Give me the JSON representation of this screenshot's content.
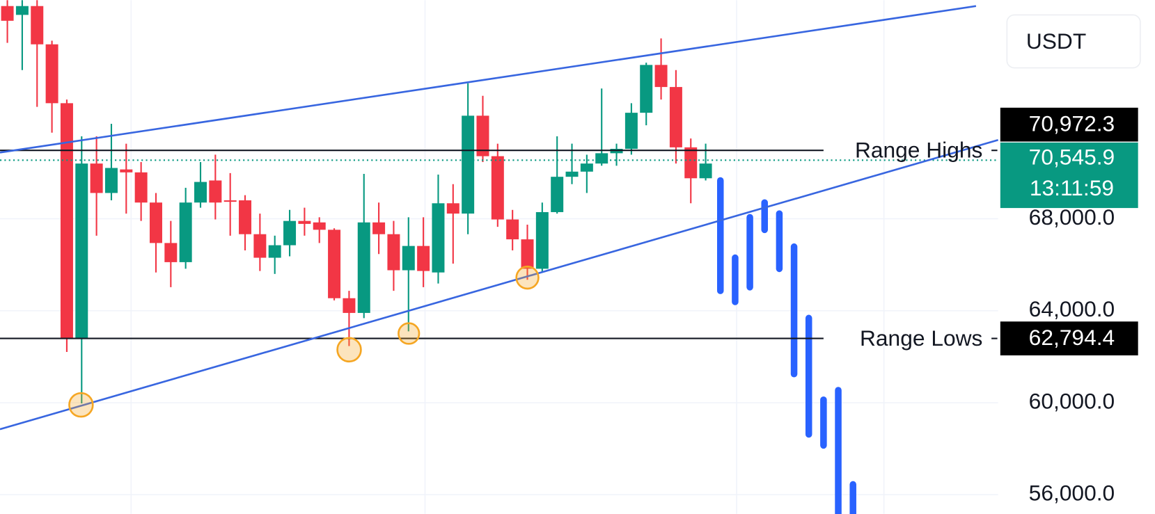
{
  "chart_data": {
    "type": "candlestick",
    "currency": "USDT",
    "up_color": "#089981",
    "down_color": "#f23645",
    "ylim": [
      55168,
      77504
    ],
    "yticks": [
      {
        "value": 56000,
        "label": "56,000.0"
      },
      {
        "value": 60000,
        "label": "60,000.0"
      },
      {
        "value": 64000,
        "label": "64,000.0"
      },
      {
        "value": 68000,
        "label": "68,000.0"
      }
    ],
    "grid": true,
    "candles": {
      "open": [
        77248,
        76864,
        77248,
        75584,
        73024,
        62784,
        70400,
        69120,
        70144,
        70016,
        68704,
        66944,
        66112,
        68704,
        69664,
        68800,
        68800,
        67328,
        66304,
        66848,
        67904,
        67840,
        67520,
        64544,
        63904,
        67840,
        67328,
        65760,
        66816,
        65664,
        68672,
        68224,
        72480,
        70720,
        67968,
        67104,
        65824,
        68288,
        69824,
        70048,
        70400,
        70848,
        71040,
        72608,
        74688,
        73728,
        71104,
        69760
      ],
      "high": [
        77504,
        77504,
        77504,
        75744,
        73184,
        71584,
        71584,
        72128,
        71264,
        70464,
        69120,
        67904,
        69344,
        70464,
        70784,
        69984,
        69024,
        68224,
        67264,
        68384,
        68480,
        68064,
        67584,
        64864,
        69952,
        68704,
        67904,
        68064,
        68064,
        69920,
        69504,
        73888,
        73344,
        71264,
        68384,
        67744,
        68704,
        71584,
        71264,
        70784,
        73664,
        71264,
        73024,
        74784,
        75840,
        74464,
        71488,
        71264
      ],
      "low": [
        75648,
        74464,
        72864,
        71744,
        62208,
        59968,
        67264,
        68800,
        68224,
        67904,
        65664,
        65024,
        65824,
        68480,
        67968,
        67264,
        66624,
        65728,
        65600,
        66368,
        67264,
        66944,
        64448,
        62464,
        63680,
        66464,
        64864,
        63104,
        65024,
        65184,
        66048,
        67328,
        70464,
        67648,
        66624,
        65344,
        65664,
        68224,
        69504,
        69120,
        70304,
        70304,
        70784,
        72064,
        73184,
        70400,
        68672,
        69664
      ],
      "close": [
        76608,
        77248,
        75584,
        73024,
        62784,
        70400,
        69120,
        70208,
        70016,
        68704,
        66944,
        66112,
        68704,
        69600,
        68704,
        68736,
        67328,
        66304,
        66848,
        67904,
        67776,
        67520,
        64544,
        63904,
        67840,
        67328,
        65760,
        66816,
        65728,
        68672,
        68224,
        72480,
        70720,
        67968,
        67104,
        65824,
        68288,
        69824,
        70048,
        70400,
        70848,
        71040,
        72608,
        74688,
        73728,
        71104,
        69760,
        70400
      ]
    },
    "projection": {
      "color": "#2962ff",
      "high": [
        69664,
        66304,
        68064,
        68704,
        68224,
        66784,
        63680,
        60128,
        60544,
        56448
      ],
      "low": [
        64864,
        64384,
        65024,
        67520,
        65824,
        61248,
        58624,
        58144,
        55168,
        55168
      ]
    },
    "levels": [
      {
        "name": "Range Highs",
        "price": {
          "value": 70972.3,
          "label": "70,972.3"
        }
      },
      {
        "name": "Range Lows",
        "price": {
          "value": 62794.4,
          "label": "62,794.4"
        }
      }
    ],
    "current_price": {
      "value": 70545.9,
      "label": "70,545.9"
    },
    "countdown": "13:11:59"
  }
}
